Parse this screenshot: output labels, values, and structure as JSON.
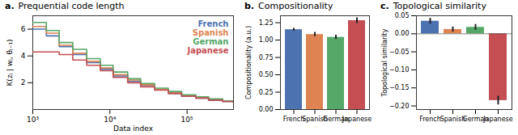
{
  "chart_data": [
    {
      "type": "line",
      "panel": "a.",
      "title": "Prequential code length",
      "x_label": "Data index",
      "y_label": "K(zⱼ | wⱼ, θⱼ₋₁)",
      "log": "x",
      "line_style": "step",
      "legend": "upper right",
      "x": [
        1000,
        1500,
        2200,
        3300,
        5000,
        7500,
        11000,
        17000,
        25000,
        38000,
        57000,
        85000,
        130000,
        190000,
        290000,
        400000
      ],
      "xlim": [
        1000,
        400000
      ],
      "xticks": [
        {
          "value": 1000,
          "label": "10³"
        },
        {
          "value": 10000,
          "label": "10⁴"
        },
        {
          "value": 100000,
          "label": "10⁵"
        }
      ],
      "ylim": [
        0,
        7
      ],
      "yticks": [
        2,
        4,
        6
      ],
      "series": [
        {
          "name": "French",
          "color": "#4c72b0",
          "values": [
            6.0,
            5.5,
            4.7,
            4.1,
            3.5,
            3.0,
            2.5,
            2.1,
            1.8,
            1.5,
            1.2,
            1.0,
            0.85,
            0.7,
            0.6,
            0.55
          ]
        },
        {
          "name": "Spanish",
          "color": "#dd8452",
          "values": [
            6.2,
            5.7,
            4.8,
            4.2,
            3.6,
            3.1,
            2.6,
            2.2,
            1.85,
            1.5,
            1.25,
            1.05,
            0.9,
            0.75,
            0.6,
            0.55
          ]
        },
        {
          "name": "German",
          "color": "#55a868",
          "values": [
            6.5,
            5.9,
            5.0,
            4.5,
            3.8,
            3.3,
            2.8,
            2.3,
            1.95,
            1.6,
            1.35,
            1.1,
            0.95,
            0.8,
            0.65,
            0.6
          ]
        },
        {
          "name": "Japanese",
          "color": "#c44e52",
          "values": [
            4.3,
            4.3,
            4.1,
            3.7,
            3.3,
            2.9,
            2.4,
            2.0,
            1.7,
            1.45,
            1.2,
            1.0,
            0.85,
            0.7,
            0.6,
            0.55
          ]
        }
      ]
    },
    {
      "type": "bar",
      "panel": "b.",
      "title": "Compositionality",
      "y_label": "Compositionality (a.u.)",
      "categories": [
        "French",
        "Spanish",
        "German",
        "Japanese"
      ],
      "values": [
        1.15,
        1.08,
        1.04,
        1.28
      ],
      "errors": [
        0.02,
        0.03,
        0.03,
        0.04
      ],
      "colors": [
        "#4c72b0",
        "#dd8452",
        "#55a868",
        "#c44e52"
      ],
      "ylim": [
        0,
        1.35
      ],
      "yticks": [
        {
          "value": 0,
          "label": "0.00"
        },
        {
          "value": 0.25,
          "label": "0.25"
        },
        {
          "value": 0.5,
          "label": "0.50"
        },
        {
          "value": 0.75,
          "label": "0.75"
        },
        {
          "value": 1,
          "label": "1.00"
        },
        {
          "value": 1.25,
          "label": "1.25"
        }
      ]
    },
    {
      "type": "bar",
      "panel": "c.",
      "title": "Topological similarity",
      "y_label": "Topological similarity",
      "categories": [
        "French",
        "Spanish",
        "German",
        "Japanese"
      ],
      "values": [
        0.035,
        0.012,
        0.018,
        -0.185
      ],
      "errors": [
        0.008,
        0.007,
        0.008,
        0.012
      ],
      "colors": [
        "#4c72b0",
        "#dd8452",
        "#55a868",
        "#c44e52"
      ],
      "ylim": [
        -0.21,
        0.05
      ],
      "yticks": [
        {
          "value": -0.2,
          "label": "−0.20"
        },
        {
          "value": -0.15,
          "label": "−0.15"
        },
        {
          "value": -0.1,
          "label": "−0.10"
        },
        {
          "value": -0.05,
          "label": "−0.05"
        },
        {
          "value": 0,
          "label": "0.00"
        },
        {
          "value": 0.05,
          "label": "0.05"
        }
      ]
    }
  ]
}
